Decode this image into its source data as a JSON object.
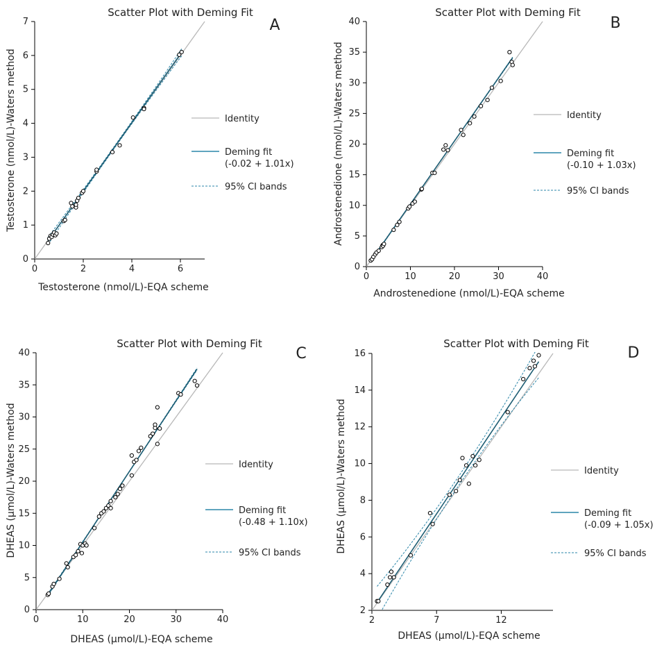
{
  "chart_data": [
    {
      "type": "scatter",
      "panel_letter": "A",
      "title": "Scatter Plot with Deming Fit",
      "xlabel": "Testosterone (nmol/L)-EQA scheme",
      "ylabel": "Testosterone (nmol/L)-Waters method",
      "xlim": [
        0,
        7
      ],
      "ylim": [
        0,
        7
      ],
      "xticks": [
        0,
        2,
        4,
        6
      ],
      "yticks": [
        0,
        1,
        2,
        3,
        4,
        5,
        6,
        7
      ],
      "legend": {
        "identity": "Identity",
        "fit": [
          "Deming fit",
          "(-0.02 + 1.01x)"
        ],
        "ci": "95% CI bands",
        "position": "right"
      },
      "fit": {
        "intercept": -0.02,
        "slope": 1.01,
        "ci_spread": 0.03
      },
      "points": [
        [
          0.55,
          0.47
        ],
        [
          0.6,
          0.6
        ],
        [
          0.65,
          0.68
        ],
        [
          0.7,
          0.65
        ],
        [
          0.75,
          0.72
        ],
        [
          0.8,
          0.78
        ],
        [
          0.85,
          0.7
        ],
        [
          0.9,
          0.75
        ],
        [
          1.2,
          1.12
        ],
        [
          1.25,
          1.15
        ],
        [
          1.5,
          1.65
        ],
        [
          1.55,
          1.55
        ],
        [
          1.7,
          1.52
        ],
        [
          1.7,
          1.6
        ],
        [
          1.75,
          1.72
        ],
        [
          1.8,
          1.8
        ],
        [
          1.95,
          1.95
        ],
        [
          2.0,
          2.0
        ],
        [
          2.55,
          2.58
        ],
        [
          2.55,
          2.63
        ],
        [
          3.2,
          3.15
        ],
        [
          3.5,
          3.35
        ],
        [
          4.05,
          4.17
        ],
        [
          4.5,
          4.45
        ],
        [
          4.5,
          4.42
        ],
        [
          5.95,
          6.02
        ],
        [
          6.05,
          6.1
        ]
      ]
    },
    {
      "type": "scatter",
      "panel_letter": "B",
      "title": "Scatter Plot with Deming Fit",
      "xlabel": "Androstenedione (nmol/L)-EQA scheme",
      "ylabel": "Androstenedione (nmol/L)-Waters method",
      "xlim": [
        0,
        40
      ],
      "ylim": [
        0,
        40
      ],
      "xticks": [
        0,
        10,
        20,
        30,
        40
      ],
      "yticks": [
        0,
        5,
        10,
        15,
        20,
        25,
        30,
        35,
        40
      ],
      "legend": {
        "identity": "Identity",
        "fit": [
          "Deming fit",
          "(-0.10 + 1.03x)"
        ],
        "ci": "95% CI bands",
        "position": "right"
      },
      "fit": {
        "intercept": -0.1,
        "slope": 1.03,
        "ci_spread": 0.03
      },
      "points": [
        [
          1.0,
          1.0
        ],
        [
          1.3,
          1.2
        ],
        [
          1.6,
          1.6
        ],
        [
          2.0,
          2.0
        ],
        [
          2.3,
          2.3
        ],
        [
          2.8,
          2.6
        ],
        [
          3.5,
          3.2
        ],
        [
          3.7,
          3.5
        ],
        [
          3.8,
          3.4
        ],
        [
          4.0,
          3.7
        ],
        [
          6.2,
          6.0
        ],
        [
          7.0,
          6.8
        ],
        [
          7.5,
          7.3
        ],
        [
          9.5,
          9.5
        ],
        [
          9.8,
          9.8
        ],
        [
          10.5,
          10.3
        ],
        [
          11.0,
          10.6
        ],
        [
          12.5,
          12.6
        ],
        [
          12.6,
          12.7
        ],
        [
          15.0,
          15.3
        ],
        [
          15.5,
          15.3
        ],
        [
          17.5,
          19.1
        ],
        [
          18.0,
          19.8
        ],
        [
          18.5,
          19.0
        ],
        [
          21.5,
          22.3
        ],
        [
          22.0,
          21.5
        ],
        [
          23.5,
          23.4
        ],
        [
          24.5,
          24.5
        ],
        [
          26.0,
          26.2
        ],
        [
          27.5,
          27.2
        ],
        [
          28.5,
          29.2
        ],
        [
          30.5,
          30.3
        ],
        [
          32.5,
          35.0
        ],
        [
          33.0,
          33.4
        ],
        [
          33.2,
          32.9
        ]
      ]
    },
    {
      "type": "scatter",
      "panel_letter": "C",
      "title": "Scatter Plot with Deming Fit",
      "xlabel": "DHEAS (µmol/L)-EQA scheme",
      "ylabel": "DHEAS (µmol/L)-Waters method",
      "xlim": [
        0,
        40
      ],
      "ylim": [
        0,
        40
      ],
      "xticks": [
        0,
        10,
        20,
        30,
        40
      ],
      "yticks": [
        0,
        5,
        10,
        15,
        20,
        25,
        30,
        35,
        40
      ],
      "legend": {
        "identity": "Identity",
        "fit": [
          "Deming fit",
          "(-0.48 + 1.10x)"
        ],
        "ci": "95% CI bands",
        "position": "right"
      },
      "fit": {
        "intercept": -0.48,
        "slope": 1.1,
        "ci_spread": 0.05
      },
      "points": [
        [
          2.5,
          2.3
        ],
        [
          2.7,
          2.5
        ],
        [
          3.5,
          3.6
        ],
        [
          3.8,
          4.0
        ],
        [
          5.0,
          4.8
        ],
        [
          6.5,
          7.2
        ],
        [
          6.8,
          6.6
        ],
        [
          8.0,
          8.2
        ],
        [
          8.5,
          8.5
        ],
        [
          9.0,
          9.1
        ],
        [
          9.5,
          10.2
        ],
        [
          9.8,
          8.8
        ],
        [
          10.0,
          10.0
        ],
        [
          10.5,
          10.3
        ],
        [
          10.8,
          10.0
        ],
        [
          12.5,
          12.7
        ],
        [
          13.5,
          14.5
        ],
        [
          14.0,
          15.0
        ],
        [
          14.5,
          15.3
        ],
        [
          15.0,
          15.8
        ],
        [
          15.5,
          16.2
        ],
        [
          16.0,
          15.8
        ],
        [
          16.0,
          16.9
        ],
        [
          17.0,
          17.5
        ],
        [
          17.5,
          18.0
        ],
        [
          18.0,
          18.8
        ],
        [
          18.5,
          19.3
        ],
        [
          20.5,
          20.9
        ],
        [
          20.5,
          24.0
        ],
        [
          21.0,
          23.0
        ],
        [
          21.5,
          23.3
        ],
        [
          22.0,
          24.7
        ],
        [
          22.5,
          25.2
        ],
        [
          24.5,
          27.0
        ],
        [
          25.0,
          27.4
        ],
        [
          25.5,
          28.3
        ],
        [
          25.5,
          28.8
        ],
        [
          26.0,
          25.8
        ],
        [
          26.0,
          31.5
        ],
        [
          26.5,
          28.2
        ],
        [
          30.5,
          33.7
        ],
        [
          31.0,
          33.5
        ],
        [
          34.0,
          35.6
        ],
        [
          34.5,
          34.9
        ]
      ]
    },
    {
      "type": "scatter",
      "panel_letter": "D",
      "title": "Scatter Plot with Deming Fit",
      "xlabel": "DHEAS (µmol/L)-EQA scheme",
      "ylabel": "DHEAS (µmol/L)-Waters method",
      "xlim": [
        2,
        16
      ],
      "ylim": [
        2,
        16
      ],
      "xticks": [
        2,
        7,
        12
      ],
      "yticks": [
        2,
        4,
        6,
        8,
        10,
        12,
        14,
        16
      ],
      "legend": {
        "identity": "Identity",
        "fit": [
          "Deming fit",
          "(-0.09 + 1.05x)"
        ],
        "ci": "95% CI bands",
        "position": "right"
      },
      "fit": {
        "intercept": -0.09,
        "slope": 1.05,
        "ci_spread": 0.25
      },
      "points": [
        [
          2.4,
          2.5
        ],
        [
          2.5,
          2.5
        ],
        [
          3.2,
          3.4
        ],
        [
          3.4,
          3.8
        ],
        [
          3.5,
          4.1
        ],
        [
          3.7,
          3.8
        ],
        [
          5.0,
          5.0
        ],
        [
          6.5,
          7.3
        ],
        [
          6.7,
          6.7
        ],
        [
          8.0,
          8.3
        ],
        [
          8.5,
          8.5
        ],
        [
          8.8,
          9.1
        ],
        [
          9.0,
          10.3
        ],
        [
          9.3,
          9.9
        ],
        [
          9.5,
          8.9
        ],
        [
          9.8,
          10.4
        ],
        [
          10.0,
          9.9
        ],
        [
          10.3,
          10.2
        ],
        [
          12.5,
          12.8
        ],
        [
          13.7,
          14.6
        ],
        [
          14.2,
          15.2
        ],
        [
          14.5,
          15.6
        ],
        [
          14.6,
          15.3
        ],
        [
          14.9,
          15.9
        ]
      ]
    }
  ]
}
